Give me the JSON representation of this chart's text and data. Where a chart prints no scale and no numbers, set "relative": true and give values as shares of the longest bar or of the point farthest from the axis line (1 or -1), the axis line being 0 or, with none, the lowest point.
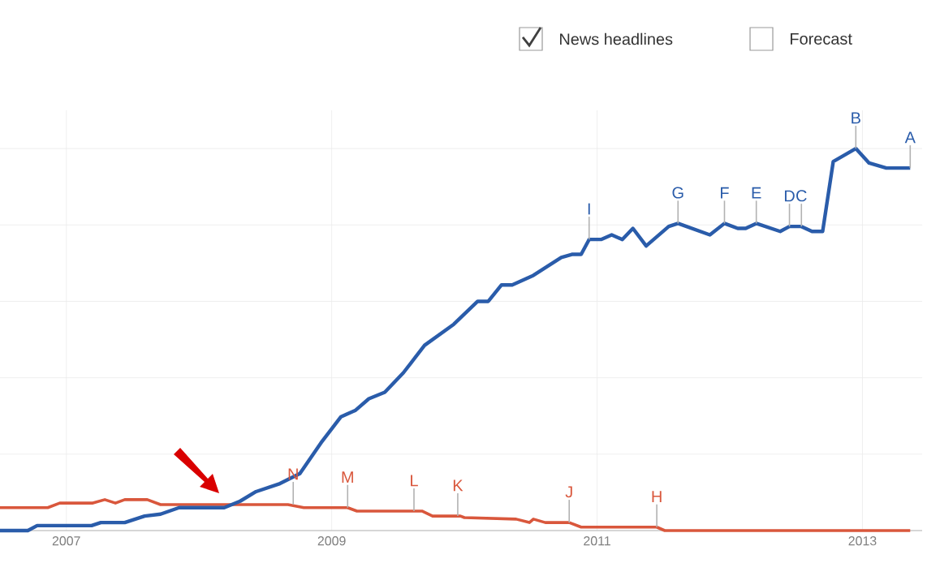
{
  "chart_data": {
    "type": "line",
    "relative": true,
    "grid": true,
    "marker": "none",
    "line_style": "solid",
    "xlim": [
      2006.5,
      2013.45
    ],
    "xticks": [
      {
        "value": 2007,
        "label": "2007"
      },
      {
        "value": 2009,
        "label": "2009"
      },
      {
        "value": 2011,
        "label": "2011"
      },
      {
        "value": 2013,
        "label": "2013"
      }
    ],
    "series": [
      {
        "color": "#2a5caa",
        "x": [
          2006.5,
          2006.71,
          2006.78,
          2007.19,
          2007.26,
          2007.44,
          2007.59,
          2007.71,
          2007.85,
          2008.19,
          2008.31,
          2008.43,
          2008.61,
          2008.76,
          2008.92,
          2009.07,
          2009.18,
          2009.28,
          2009.4,
          2009.54,
          2009.7,
          2009.92,
          2010.1,
          2010.18,
          2010.28,
          2010.36,
          2010.52,
          2010.73,
          2010.81,
          2010.88,
          2010.94,
          2011.03,
          2011.11,
          2011.19,
          2011.27,
          2011.37,
          2011.54,
          2011.61,
          2011.85,
          2011.96,
          2012.06,
          2012.12,
          2012.2,
          2012.38,
          2012.45,
          2012.54,
          2012.62,
          2012.7,
          2012.78,
          2012.95,
          2013.05,
          2013.18,
          2013.36
        ],
        "values": [
          0,
          0,
          0.013,
          0.013,
          0.021,
          0.021,
          0.038,
          0.043,
          0.06,
          0.06,
          0.077,
          0.102,
          0.123,
          0.149,
          0.23,
          0.298,
          0.315,
          0.345,
          0.362,
          0.413,
          0.485,
          0.54,
          0.6,
          0.6,
          0.643,
          0.643,
          0.668,
          0.715,
          0.723,
          0.723,
          0.762,
          0.762,
          0.774,
          0.762,
          0.791,
          0.745,
          0.796,
          0.804,
          0.774,
          0.804,
          0.791,
          0.791,
          0.804,
          0.783,
          0.796,
          0.796,
          0.783,
          0.783,
          0.966,
          1.0,
          0.962,
          0.949,
          0.949
        ]
      },
      {
        "color": "#d9573c",
        "x": [
          2006.5,
          2006.86,
          2006.95,
          2007.2,
          2007.29,
          2007.37,
          2007.44,
          2007.61,
          2007.71,
          2008.67,
          2008.79,
          2009.12,
          2009.19,
          2009.68,
          2009.76,
          2009.97,
          2010.0,
          2010.39,
          2010.49,
          2010.52,
          2010.61,
          2010.79,
          2010.88,
          2011.45,
          2011.51,
          2013.36
        ],
        "values": [
          0.06,
          0.06,
          0.072,
          0.072,
          0.081,
          0.072,
          0.081,
          0.081,
          0.068,
          0.068,
          0.06,
          0.06,
          0.051,
          0.051,
          0.038,
          0.038,
          0.034,
          0.03,
          0.021,
          0.03,
          0.021,
          0.021,
          0.009,
          0.009,
          0,
          0
        ]
      }
    ],
    "annotations": [
      "News headlines",
      "Forecast",
      {
        "text": "N",
        "x": 2008.71,
        "y": 0.068
      },
      {
        "text": "M",
        "x": 2009.12,
        "y": 0.06
      },
      {
        "text": "L",
        "x": 2009.62,
        "y": 0.051
      },
      {
        "text": "K",
        "x": 2009.95,
        "y": 0.038
      },
      {
        "text": "J",
        "x": 2010.79,
        "y": 0.021
      },
      {
        "text": "H",
        "x": 2011.45,
        "y": 0.009
      },
      {
        "text": "I",
        "x": 2010.94,
        "y": 0.762
      },
      {
        "text": "G",
        "x": 2011.61,
        "y": 0.804
      },
      {
        "text": "F",
        "x": 2011.96,
        "y": 0.804
      },
      {
        "text": "E",
        "x": 2012.2,
        "y": 0.804
      },
      {
        "text": "D",
        "x": 2012.45,
        "y": 0.796
      },
      {
        "text": "C",
        "x": 2012.54,
        "y": 0.796
      },
      {
        "text": "B",
        "x": 2012.95,
        "y": 1.0
      },
      {
        "text": "A",
        "x": 2013.36,
        "y": 0.949
      }
    ]
  }
}
